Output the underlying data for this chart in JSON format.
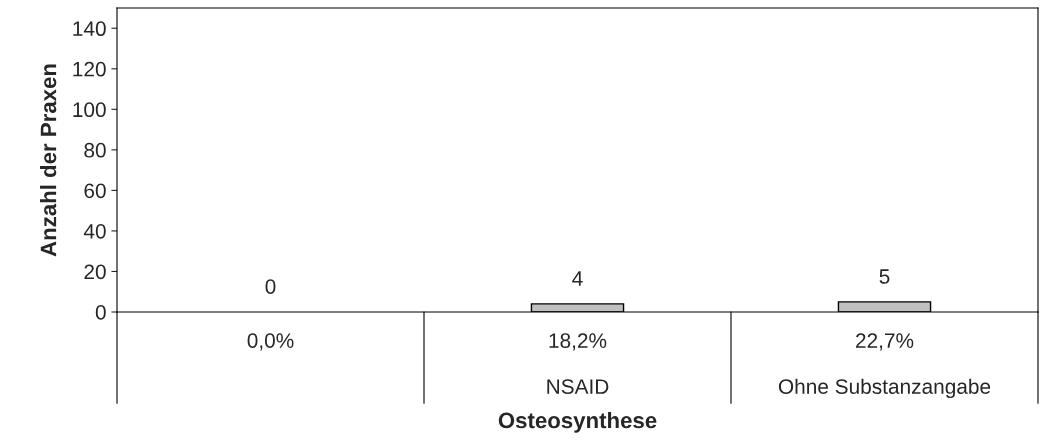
{
  "chart_data": {
    "type": "bar",
    "categories": [
      null,
      "NSAID",
      "Ohne Substanzangabe"
    ],
    "values": [
      0,
      4,
      5
    ],
    "color": "#c0c0c0",
    "data_labels": true,
    "annotations": [
      "0,0%",
      "18,2%",
      "22,7%"
    ],
    "xlabel": "Osteosynthese",
    "ylabel": "Anzahl der Praxen",
    "ylim": [
      0,
      150
    ],
    "yticks": [
      0,
      20,
      40,
      60,
      80,
      100,
      120,
      140
    ],
    "grid": false,
    "legend": false
  }
}
